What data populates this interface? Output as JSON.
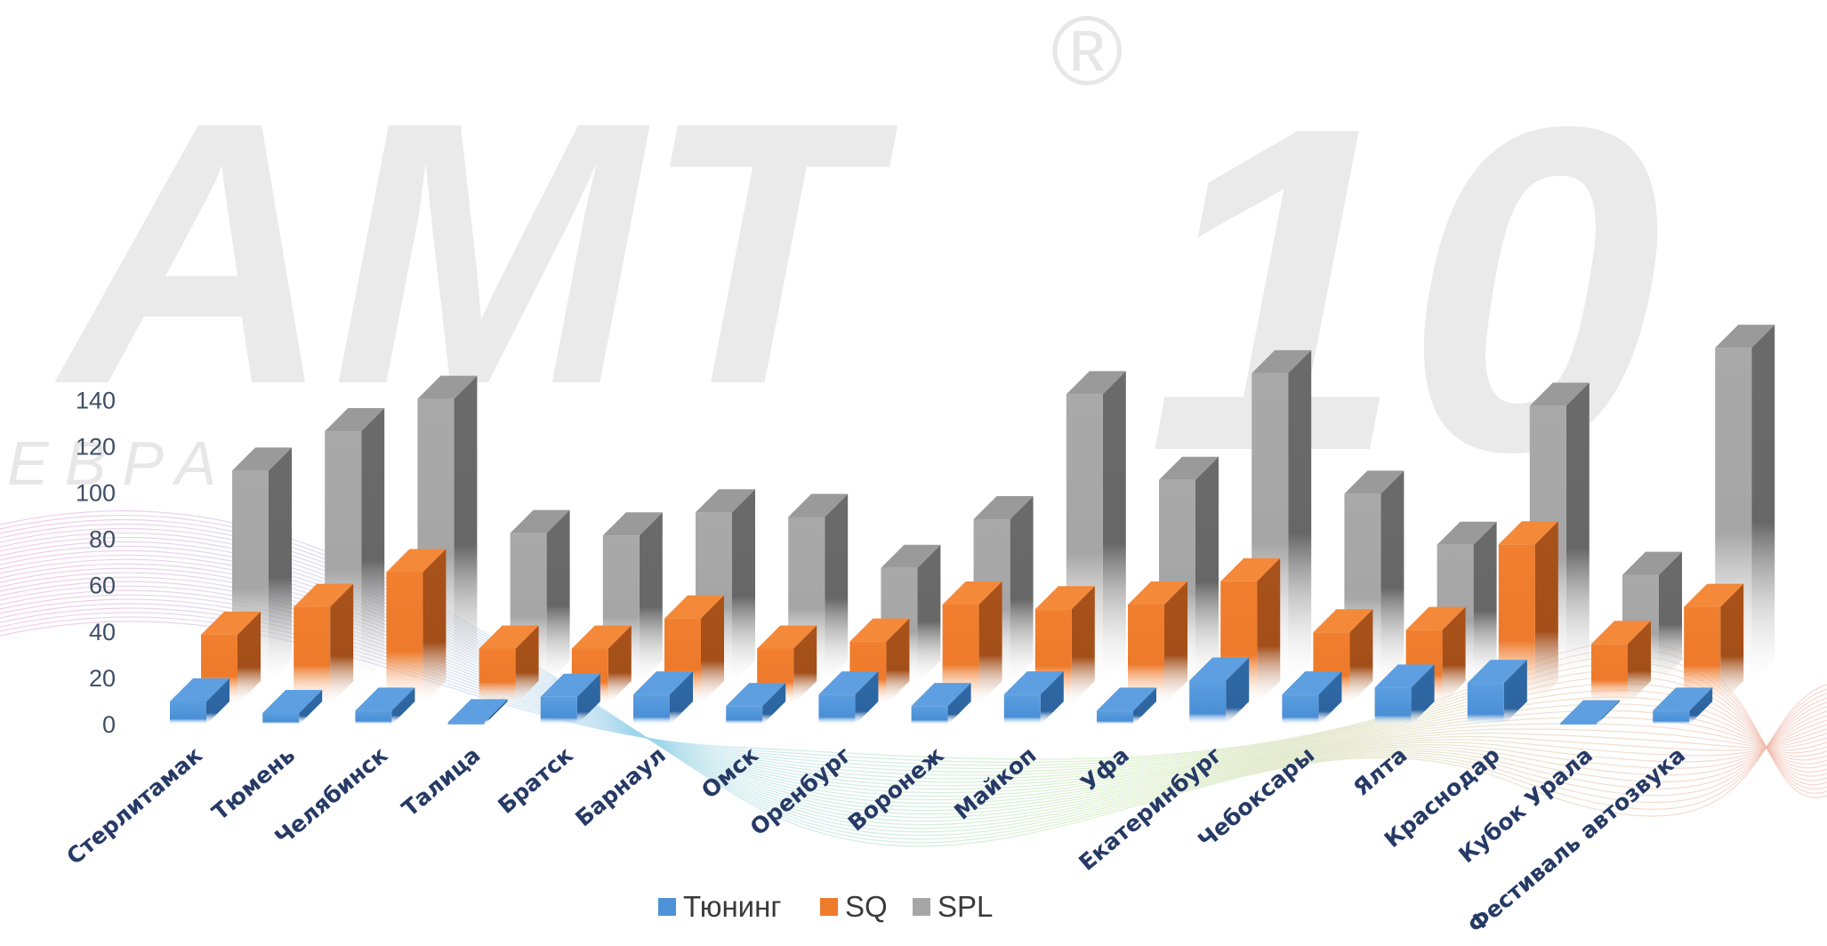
{
  "watermark": {
    "logo_text": "AMT",
    "number_text": "10",
    "registered": "®",
    "subtitle": "ЕВРА"
  },
  "chart_data": {
    "type": "bar",
    "title": "",
    "xlabel": "",
    "ylabel": "",
    "ylim": [
      0,
      140
    ],
    "yticks": [
      0,
      20,
      40,
      60,
      80,
      100,
      120,
      140
    ],
    "grid": false,
    "three_d": true,
    "legend_position": "bottom",
    "categories": [
      "Стерлитамак",
      "Тюмень",
      "Челябинск",
      "Талица",
      "Братск",
      "Барнаул",
      "Омск",
      "Оренбург",
      "Воронеж",
      "Майкоп",
      "Уфа",
      "Екатеринбург",
      "Чебоксары",
      "Ялта",
      "Краснодар",
      "Кубок Урала",
      "Фестиваль автозвука"
    ],
    "series": [
      {
        "name": "Тюнинг",
        "color": "#4e93d8",
        "values": [
          10,
          5,
          6,
          1,
          12,
          13,
          8,
          13,
          8,
          13,
          6,
          19,
          13,
          16,
          18,
          0,
          6
        ]
      },
      {
        "name": "SQ",
        "color": "#ee7a2b",
        "values": [
          30,
          42,
          57,
          24,
          24,
          37,
          24,
          27,
          43,
          41,
          43,
          53,
          31,
          32,
          69,
          26,
          42
        ]
      },
      {
        "name": "SPL",
        "color": "#a6a6a6",
        "values": [
          92,
          109,
          123,
          65,
          64,
          74,
          72,
          50,
          71,
          125,
          88,
          134,
          82,
          60,
          120,
          47,
          145
        ]
      }
    ]
  }
}
